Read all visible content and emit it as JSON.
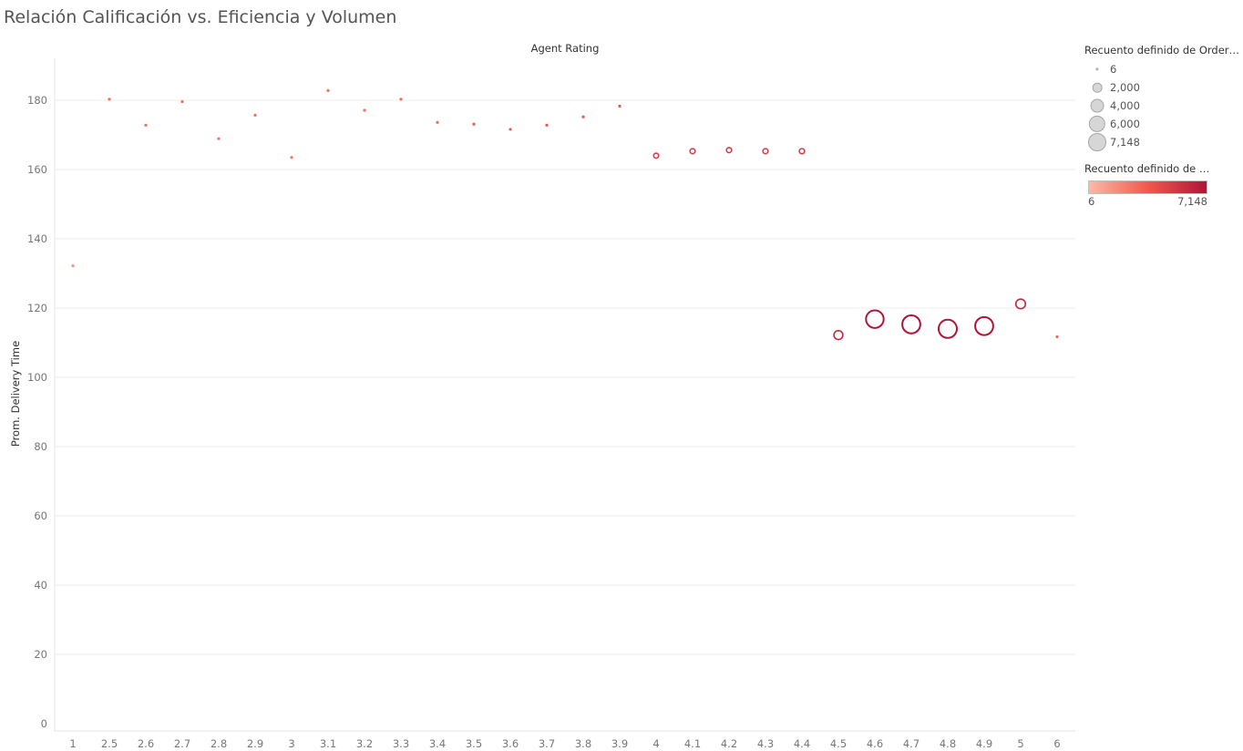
{
  "page": {
    "title": "Relación Calificación vs. Eficiencia y Volumen"
  },
  "chart_data": {
    "type": "scatter",
    "title": "Relación Calificación vs. Eficiencia y Volumen",
    "xlabel": "Agent Rating",
    "ylabel": "Prom. Delivery Time",
    "x_scale": "categorical",
    "categories": [
      "1",
      "2.5",
      "2.6",
      "2.7",
      "2.8",
      "2.9",
      "3",
      "3.1",
      "3.2",
      "3.3",
      "3.4",
      "3.5",
      "3.6",
      "3.7",
      "3.8",
      "3.9",
      "4",
      "4.1",
      "4.2",
      "4.3",
      "4.4",
      "4.5",
      "4.6",
      "4.7",
      "4.8",
      "4.9",
      "5",
      "6"
    ],
    "y_ticks": [
      0,
      20,
      40,
      60,
      80,
      100,
      120,
      140,
      160,
      180
    ],
    "ylim": [
      0,
      190
    ],
    "grid": true,
    "points": [
      {
        "x": "1",
        "y": 132.2,
        "count": 6
      },
      {
        "x": "2.5",
        "y": 180.3,
        "count": 30
      },
      {
        "x": "2.6",
        "y": 172.8,
        "count": 30
      },
      {
        "x": "2.7",
        "y": 179.6,
        "count": 30
      },
      {
        "x": "2.8",
        "y": 168.9,
        "count": 30
      },
      {
        "x": "2.9",
        "y": 175.7,
        "count": 30
      },
      {
        "x": "3",
        "y": 163.5,
        "count": 25
      },
      {
        "x": "3.1",
        "y": 182.8,
        "count": 25
      },
      {
        "x": "3.2",
        "y": 177.1,
        "count": 30
      },
      {
        "x": "3.3",
        "y": 180.3,
        "count": 35
      },
      {
        "x": "3.4",
        "y": 173.6,
        "count": 40
      },
      {
        "x": "3.5",
        "y": 173.1,
        "count": 80
      },
      {
        "x": "3.6",
        "y": 171.6,
        "count": 80
      },
      {
        "x": "3.7",
        "y": 172.8,
        "count": 90
      },
      {
        "x": "3.8",
        "y": 175.2,
        "count": 100
      },
      {
        "x": "3.9",
        "y": 178.3,
        "count": 110
      },
      {
        "x": "4",
        "y": 164.0,
        "count": 530
      },
      {
        "x": "4.1",
        "y": 165.3,
        "count": 560
      },
      {
        "x": "4.2",
        "y": 165.6,
        "count": 560
      },
      {
        "x": "4.3",
        "y": 165.3,
        "count": 560
      },
      {
        "x": "4.4",
        "y": 165.3,
        "count": 580
      },
      {
        "x": "4.5",
        "y": 112.2,
        "count": 1700
      },
      {
        "x": "4.6",
        "y": 116.8,
        "count": 6700
      },
      {
        "x": "4.7",
        "y": 115.3,
        "count": 7000
      },
      {
        "x": "4.8",
        "y": 114.0,
        "count": 7148
      },
      {
        "x": "4.9",
        "y": 114.8,
        "count": 7000
      },
      {
        "x": "5",
        "y": 121.2,
        "count": 2000
      },
      {
        "x": "6",
        "y": 111.7,
        "count": 50
      }
    ],
    "size_legend": {
      "title": "Recuento definido de Order ID",
      "entries": [
        {
          "label": "6",
          "value": 6
        },
        {
          "label": "2,000",
          "value": 2000
        },
        {
          "label": "4,000",
          "value": 4000
        },
        {
          "label": "6,000",
          "value": 6000
        },
        {
          "label": "7,148",
          "value": 7148
        }
      ]
    },
    "color_legend": {
      "title": "Recuento definido de O..",
      "min_label": "6",
      "max_label": "7,148",
      "colors": [
        "#fcb9a6",
        "#f2584d",
        "#b01438"
      ]
    },
    "legend_position": "right"
  }
}
